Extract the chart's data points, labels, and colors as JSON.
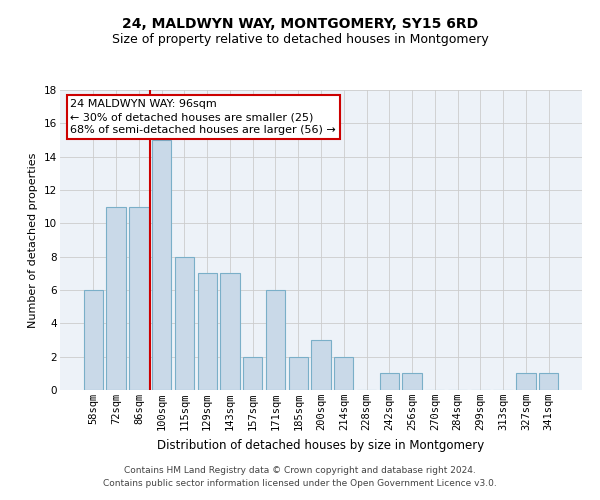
{
  "title": "24, MALDWYN WAY, MONTGOMERY, SY15 6RD",
  "subtitle": "Size of property relative to detached houses in Montgomery",
  "xlabel": "Distribution of detached houses by size in Montgomery",
  "ylabel": "Number of detached properties",
  "categories": [
    "58sqm",
    "72sqm",
    "86sqm",
    "100sqm",
    "115sqm",
    "129sqm",
    "143sqm",
    "157sqm",
    "171sqm",
    "185sqm",
    "200sqm",
    "214sqm",
    "228sqm",
    "242sqm",
    "256sqm",
    "270sqm",
    "284sqm",
    "299sqm",
    "313sqm",
    "327sqm",
    "341sqm"
  ],
  "values": [
    6,
    11,
    11,
    15,
    8,
    7,
    7,
    2,
    6,
    2,
    3,
    2,
    0,
    1,
    1,
    0,
    0,
    0,
    0,
    1,
    1
  ],
  "bar_color": "#c9d9e8",
  "bar_edge_color": "#7aafc8",
  "vline_x_index": 3,
  "vline_color": "#cc0000",
  "annotation_text": "24 MALDWYN WAY: 96sqm\n← 30% of detached houses are smaller (25)\n68% of semi-detached houses are larger (56) →",
  "annotation_box_color": "#ffffff",
  "annotation_box_edge_color": "#cc0000",
  "ylim": [
    0,
    18
  ],
  "yticks": [
    0,
    2,
    4,
    6,
    8,
    10,
    12,
    14,
    16,
    18
  ],
  "grid_color": "#cccccc",
  "bg_color": "#edf2f8",
  "footer": "Contains HM Land Registry data © Crown copyright and database right 2024.\nContains public sector information licensed under the Open Government Licence v3.0.",
  "title_fontsize": 10,
  "subtitle_fontsize": 9,
  "xlabel_fontsize": 8.5,
  "ylabel_fontsize": 8,
  "annotation_fontsize": 8,
  "footer_fontsize": 6.5,
  "tick_fontsize": 7.5
}
